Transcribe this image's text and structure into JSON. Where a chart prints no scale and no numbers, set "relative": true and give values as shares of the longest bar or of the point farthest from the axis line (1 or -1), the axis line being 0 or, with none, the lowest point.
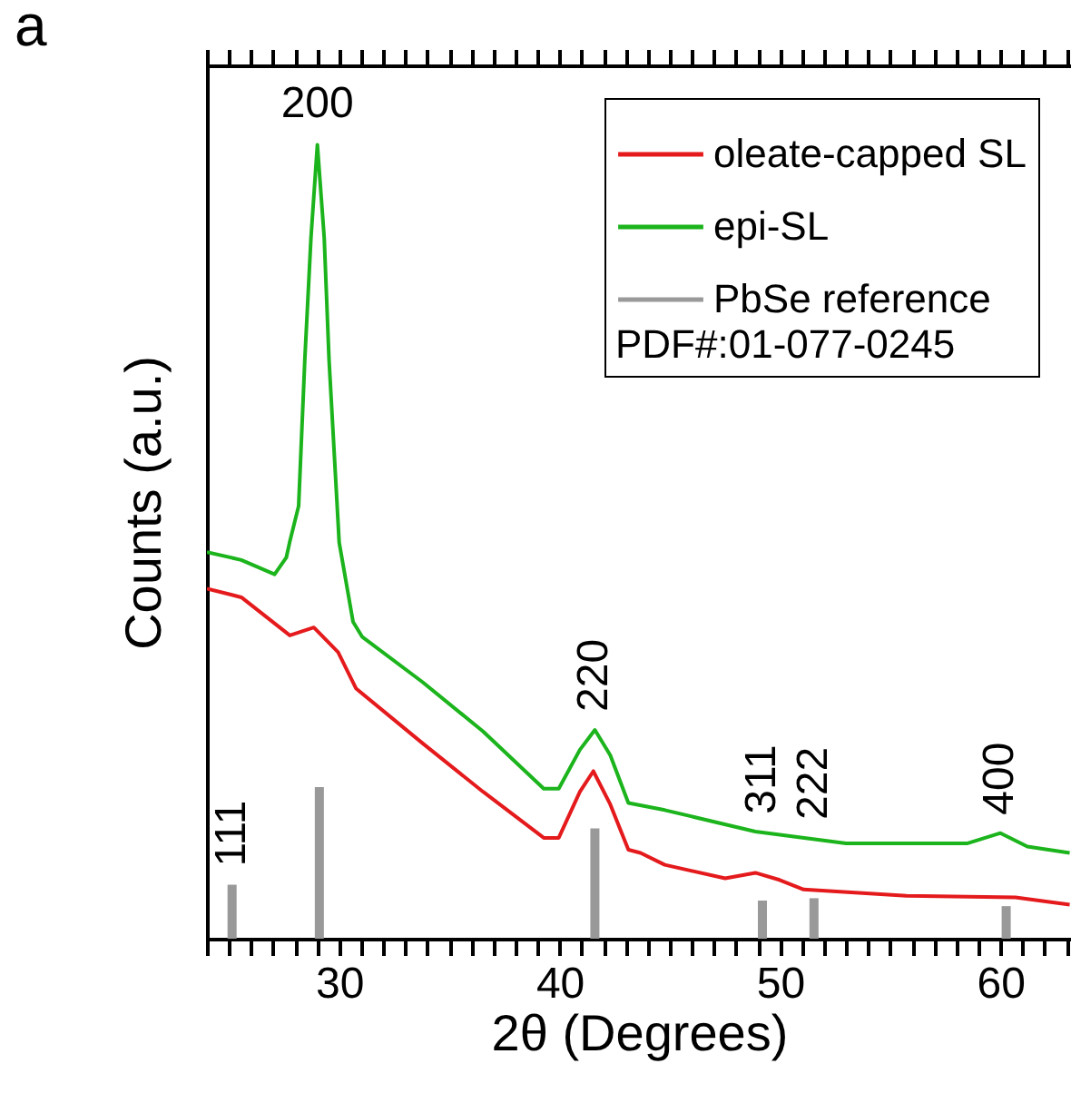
{
  "chart_data": {
    "type": "line",
    "relative": true,
    "xlabel": "2θ (Degrees)",
    "ylabel": "Counts (a.u.)",
    "legend_title": "PDF#:01-077-0245",
    "legend": "top right",
    "grid": false,
    "xlim": [
      24,
      63.2
    ],
    "xticks": [
      {
        "value": 24,
        "label": null
      },
      {
        "value": 25,
        "label": null
      },
      {
        "value": 26,
        "label": null
      },
      {
        "value": 27,
        "label": null
      },
      {
        "value": 28,
        "label": null
      },
      {
        "value": 29,
        "label": null
      },
      30,
      {
        "value": 31,
        "label": null
      },
      {
        "value": 32,
        "label": null
      },
      {
        "value": 33,
        "label": null
      },
      {
        "value": 34,
        "label": null
      },
      {
        "value": 35,
        "label": null
      },
      {
        "value": 36,
        "label": null
      },
      {
        "value": 37,
        "label": null
      },
      {
        "value": 38,
        "label": null
      },
      {
        "value": 39,
        "label": null
      },
      40,
      {
        "value": 41,
        "label": null
      },
      {
        "value": 42,
        "label": null
      },
      {
        "value": 43,
        "label": null
      },
      {
        "value": 44,
        "label": null
      },
      {
        "value": 45,
        "label": null
      },
      {
        "value": 46,
        "label": null
      },
      {
        "value": 47,
        "label": null
      },
      {
        "value": 48,
        "label": null
      },
      {
        "value": 49,
        "label": null
      },
      50,
      {
        "value": 51,
        "label": null
      },
      {
        "value": 52,
        "label": null
      },
      {
        "value": 53,
        "label": null
      },
      {
        "value": 54,
        "label": null
      },
      {
        "value": 55,
        "label": null
      },
      {
        "value": 56,
        "label": null
      },
      {
        "value": 57,
        "label": null
      },
      {
        "value": 58,
        "label": null
      },
      {
        "value": 59,
        "label": null
      },
      60,
      {
        "value": 61,
        "label": null
      },
      {
        "value": 62,
        "label": null
      },
      {
        "value": 63,
        "label": null
      }
    ],
    "series": [
      {
        "name": "oleate-capped SL",
        "color": "#e41a1c",
        "x": [
          24.0,
          25.56,
          27.76,
          28.85,
          29.95,
          30.77,
          33.79,
          36.53,
          39.28,
          39.96,
          40.92,
          41.53,
          42.3,
          43.12,
          43.67,
          44.77,
          47.51,
          48.88,
          49.98,
          51.07,
          55.74,
          60.68,
          63.14
        ],
        "values": [
          0.441,
          0.43,
          0.382,
          0.392,
          0.361,
          0.315,
          0.246,
          0.185,
          0.127,
          0.127,
          0.185,
          0.211,
          0.169,
          0.112,
          0.108,
          0.093,
          0.076,
          0.083,
          0.074,
          0.062,
          0.054,
          0.052,
          0.043
        ]
      },
      {
        "name": "epi-SL",
        "color": "#1cb41c",
        "x": [
          24.0,
          25.56,
          27.07,
          27.6,
          27.75,
          28.16,
          28.44,
          28.72,
          29.01,
          29.32,
          29.54,
          30.0,
          30.63,
          31.05,
          33.79,
          36.53,
          39.28,
          39.96,
          40.92,
          41.6,
          42.3,
          43.12,
          44.77,
          48.88,
          53.0,
          58.48,
          60.0,
          61.22,
          63.14
        ],
        "values": [
          0.487,
          0.477,
          0.459,
          0.48,
          0.499,
          0.545,
          0.729,
          0.883,
          1.0,
          0.883,
          0.729,
          0.499,
          0.399,
          0.38,
          0.323,
          0.261,
          0.189,
          0.189,
          0.238,
          0.263,
          0.231,
          0.171,
          0.162,
          0.135,
          0.12,
          0.12,
          0.133,
          0.116,
          0.108
        ]
      },
      {
        "name": "PbSe reference",
        "color": "#999999",
        "type": "bar",
        "x": [
          25.14,
          29.1,
          41.6,
          49.2,
          51.54,
          60.26
        ],
        "values": [
          0.068,
          0.191,
          0.139,
          0.048,
          0.051,
          0.041
        ]
      }
    ],
    "annotations": [
      "a",
      {
        "text": "200",
        "x": 29.01,
        "y": 1.0
      },
      {
        "text": "111",
        "x": 25.14,
        "y": 0.068
      },
      {
        "text": "220",
        "x": 41.6,
        "y": 0.263
      },
      {
        "text": "311",
        "x": 49.2,
        "y": 0.134
      },
      {
        "text": "222",
        "x": 51.54,
        "y": 0.127
      },
      {
        "text": "400",
        "x": 60.0,
        "y": 0.133
      }
    ]
  }
}
